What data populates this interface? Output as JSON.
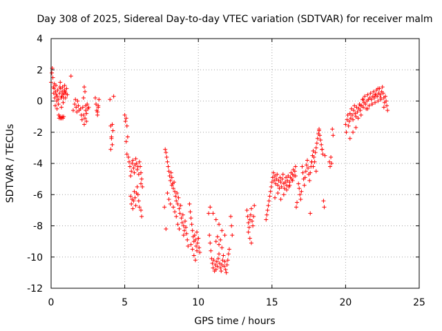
{
  "chart_data": {
    "type": "scatter",
    "title": "Day 308 of 2025, Sidereal Day-to-day VTEC variation (SDTVAR) for receiver malm",
    "xlabel": "GPS time / hours",
    "ylabel": "SDTVAR / TECUs",
    "xlim": [
      0,
      25
    ],
    "ylim": [
      -12,
      4
    ],
    "xticks": [
      0,
      5,
      10,
      15,
      20,
      25
    ],
    "yticks": [
      -12,
      -10,
      -8,
      -6,
      -4,
      -2,
      0,
      2,
      4
    ],
    "xtick_labels": [
      "0",
      "5",
      "10",
      "15",
      "20",
      "25"
    ],
    "ytick_labels": [
      "-12",
      "-10",
      "-8",
      "-6",
      "-4",
      "-2",
      "0",
      "2",
      "4"
    ],
    "grid": true,
    "marker": "+",
    "color": "#ff0000",
    "series": [
      {
        "name": "SDTVAR",
        "x": [
          0.0,
          0.05,
          0.08,
          0.12,
          0.15,
          0.18,
          0.2,
          0.22,
          0.25,
          0.28,
          0.3,
          0.33,
          0.35,
          0.38,
          0.4,
          0.42,
          0.45,
          0.48,
          0.5,
          0.52,
          0.55,
          0.58,
          0.6,
          0.62,
          0.65,
          0.68,
          0.7,
          0.72,
          0.75,
          0.78,
          0.8,
          0.82,
          0.85,
          0.88,
          0.9,
          0.92,
          0.95,
          0.98,
          1.0,
          1.05,
          1.1,
          0.6,
          0.65,
          0.7,
          0.75,
          0.8,
          0.85,
          1.35,
          1.5,
          1.6,
          1.65,
          1.7,
          1.75,
          1.8,
          1.85,
          1.9,
          2.0,
          2.05,
          2.1,
          2.15,
          2.2,
          2.25,
          2.3,
          2.35,
          2.4,
          2.45,
          2.5,
          2.55,
          2.2,
          2.25,
          2.3,
          2.35,
          2.4,
          3.0,
          3.05,
          3.1,
          3.15,
          3.2,
          3.25,
          3.15,
          3.2,
          4.0,
          4.05,
          4.1,
          4.15,
          4.05,
          4.1,
          4.15,
          4.2,
          4.25,
          5.0,
          5.05,
          5.1,
          5.15,
          5.1,
          5.15,
          5.2,
          5.25,
          5.3,
          5.35,
          5.4,
          5.45,
          5.5,
          5.55,
          5.6,
          5.65,
          5.7,
          5.75,
          5.8,
          5.85,
          5.9,
          5.95,
          6.0,
          6.05,
          6.1,
          5.4,
          5.45,
          5.5,
          5.55,
          5.6,
          5.65,
          5.7,
          5.75,
          5.8,
          5.85,
          5.9,
          5.95,
          6.0,
          6.1,
          6.15,
          6.2,
          6.1,
          6.15,
          7.7,
          7.75,
          7.8,
          7.85,
          7.9,
          7.95,
          8.0,
          8.05,
          8.1,
          8.15,
          8.2,
          8.25,
          8.3,
          8.35,
          8.4,
          8.45,
          8.5,
          8.55,
          8.6,
          8.65,
          8.7,
          8.75,
          8.8,
          8.85,
          8.9,
          8.95,
          9.0,
          9.05,
          9.1,
          9.15,
          9.2,
          9.25,
          7.8,
          7.9,
          8.0,
          8.1,
          8.2,
          8.3,
          8.4,
          8.5,
          8.6,
          8.7,
          9.0,
          9.3,
          9.4,
          9.45,
          9.5,
          9.55,
          9.6,
          9.65,
          9.7,
          9.75,
          9.8,
          9.85,
          9.9,
          9.95,
          10.0,
          10.05,
          10.1,
          9.5,
          9.6,
          9.7,
          9.8,
          9.9,
          10.0,
          10.7,
          10.75,
          10.8,
          10.85,
          10.9,
          10.95,
          11.0,
          11.05,
          11.1,
          11.15,
          11.2,
          11.25,
          11.3,
          11.35,
          11.4,
          11.45,
          11.5,
          11.55,
          11.6,
          11.65,
          11.7,
          11.75,
          11.8,
          11.85,
          11.9,
          11.95,
          12.0,
          12.05,
          12.1,
          10.8,
          11.0,
          11.2,
          11.4,
          11.6,
          11.8,
          11.2,
          11.3,
          11.4,
          11.5,
          11.6,
          12.2,
          12.25,
          12.3,
          13.3,
          13.35,
          13.4,
          13.45,
          13.5,
          13.55,
          13.6,
          13.65,
          13.7,
          13.75,
          13.8,
          13.4,
          13.5,
          13.6,
          14.6,
          14.65,
          14.7,
          14.75,
          14.8,
          14.85,
          14.9,
          14.95,
          15.0,
          15.05,
          15.1,
          15.15,
          15.2,
          15.25,
          15.3,
          15.35,
          15.4,
          15.45,
          15.5,
          15.55,
          15.6,
          15.65,
          15.7,
          15.75,
          15.8,
          15.85,
          15.9,
          15.95,
          16.0,
          16.05,
          16.1,
          16.15,
          16.2,
          16.25,
          16.3,
          16.35,
          16.4,
          16.45,
          16.5,
          16.55,
          16.6,
          16.65,
          16.7,
          15.2,
          15.4,
          15.6,
          15.8,
          16.0,
          16.2,
          16.4,
          16.6,
          16.8,
          16.85,
          16.9,
          16.95,
          17.0,
          17.05,
          17.1,
          17.15,
          17.2,
          17.25,
          17.3,
          17.35,
          17.4,
          17.45,
          17.5,
          17.55,
          17.6,
          17.65,
          17.7,
          17.75,
          17.8,
          17.85,
          17.9,
          17.95,
          18.0,
          18.05,
          18.1,
          18.15,
          18.2,
          18.25,
          18.3,
          18.35,
          18.4,
          18.45,
          18.5,
          18.55,
          17.6,
          17.7,
          17.8,
          18.0,
          18.2,
          18.4,
          18.6,
          18.9,
          18.95,
          19.0,
          19.05,
          19.1,
          19.15,
          20.0,
          20.05,
          20.1,
          20.15,
          20.2,
          20.25,
          20.3,
          20.35,
          20.4,
          20.45,
          20.5,
          20.55,
          20.6,
          20.65,
          20.7,
          20.75,
          20.8,
          20.85,
          20.9,
          20.95,
          21.0,
          21.05,
          21.1,
          21.15,
          21.2,
          21.25,
          21.3,
          21.35,
          21.4,
          21.45,
          21.5,
          21.55,
          21.6,
          21.65,
          21.7,
          21.75,
          21.8,
          21.85,
          21.9,
          21.95,
          22.0,
          22.05,
          22.1,
          22.15,
          22.2,
          22.25,
          22.3,
          22.35,
          22.4,
          22.45,
          22.5,
          22.55,
          22.6,
          22.65,
          22.7,
          22.75,
          22.8,
          22.85,
          20.3,
          20.5,
          20.7,
          21.0,
          21.2,
          21.5,
          21.8,
          22.0,
          22.2,
          22.4,
          22.6
        ],
        "y": [
          1.2,
          1.8,
          2.1,
          1.5,
          0.9,
          0.5,
          0.8,
          1.1,
          0.2,
          -0.3,
          0.6,
          1.0,
          0.4,
          0.0,
          -0.5,
          0.3,
          0.7,
          0.1,
          -0.2,
          -0.9,
          -1.1,
          0.5,
          0.9,
          1.2,
          0.8,
          0.2,
          -0.4,
          0.3,
          0.6,
          0.9,
          0.4,
          -0.1,
          0.2,
          0.5,
          0.7,
          1.0,
          0.6,
          0.2,
          0.5,
          0.8,
          0.4,
          -1.0,
          -1.1,
          -1.1,
          -1.0,
          -1.1,
          -1.0,
          1.6,
          -0.6,
          -0.2,
          0.1,
          -0.4,
          -0.7,
          0.0,
          -0.3,
          -0.6,
          -0.5,
          -0.9,
          -1.2,
          -0.4,
          0.2,
          0.9,
          0.6,
          -0.3,
          -0.8,
          -0.2,
          -0.5,
          -0.4,
          -0.9,
          -1.5,
          -1.1,
          -0.6,
          -1.3,
          0.2,
          -0.2,
          -0.6,
          -0.9,
          -0.4,
          0.1,
          -0.7,
          -0.3,
          0.1,
          -1.6,
          -2.3,
          -2.8,
          -3.1,
          -2.4,
          -1.5,
          -1.9,
          0.3,
          -0.9,
          -1.3,
          -1.1,
          -1.6,
          -2.6,
          -3.4,
          -2.3,
          -3.6,
          -3.9,
          -4.2,
          -4.8,
          -4.5,
          -4.0,
          -3.8,
          -4.3,
          -4.6,
          -4.1,
          -3.7,
          -4.0,
          -4.4,
          -4.2,
          -4.7,
          -3.9,
          -4.2,
          -4.6,
          -6.1,
          -6.6,
          -6.3,
          -6.9,
          -6.4,
          -5.8,
          -6.2,
          -6.7,
          -5.9,
          -5.5,
          -6.0,
          -6.4,
          -6.8,
          -5.3,
          -5.0,
          -5.5,
          -7.0,
          -7.4,
          -6.8,
          -3.1,
          -3.3,
          -3.6,
          -3.9,
          -4.2,
          -4.5,
          -4.8,
          -5.1,
          -4.6,
          -4.9,
          -5.3,
          -5.6,
          -5.2,
          -5.8,
          -6.1,
          -6.4,
          -5.9,
          -6.6,
          -6.2,
          -6.9,
          -7.2,
          -6.7,
          -7.5,
          -7.8,
          -7.3,
          -8.0,
          -8.3,
          -7.7,
          -8.1,
          -8.5,
          -8.9,
          -8.2,
          -5.9,
          -6.3,
          -6.6,
          -5.4,
          -6.8,
          -7.1,
          -7.4,
          -7.9,
          -8.2,
          -8.6,
          -9.3,
          -6.6,
          -7.1,
          -7.5,
          -7.9,
          -8.3,
          -8.7,
          -9.0,
          -8.6,
          -8.9,
          -9.3,
          -9.6,
          -9.1,
          -8.8,
          -9.4,
          -9.7,
          -9.2,
          -9.5,
          -9.9,
          -10.2,
          -8.4,
          -8.8,
          -7.2,
          -8.6,
          -9.1,
          -9.6,
          -10.1,
          -10.4,
          -10.7,
          -10.2,
          -10.9,
          -10.5,
          -10.8,
          -10.3,
          -10.6,
          -10.1,
          -9.8,
          -10.4,
          -10.7,
          -10.9,
          -10.5,
          -10.2,
          -9.9,
          -10.6,
          -10.3,
          -10.8,
          -11.0,
          -10.5,
          -10.2,
          -9.8,
          -9.5,
          -6.8,
          -7.2,
          -7.6,
          -7.9,
          -8.3,
          -8.6,
          -9.0,
          -8.7,
          -9.2,
          -8.9,
          -9.4,
          -7.4,
          -8.0,
          -8.6,
          -7.0,
          -7.4,
          -7.8,
          -8.1,
          -7.6,
          -7.3,
          -6.9,
          -7.7,
          -8.0,
          -7.4,
          -6.7,
          -8.4,
          -8.8,
          -9.1,
          -7.6,
          -7.3,
          -7.0,
          -6.7,
          -6.4,
          -6.1,
          -5.8,
          -5.5,
          -5.2,
          -4.9,
          -4.6,
          -5.1,
          -4.8,
          -5.3,
          -5.0,
          -4.7,
          -5.4,
          -5.1,
          -5.6,
          -4.9,
          -5.2,
          -5.5,
          -5.0,
          -4.7,
          -5.3,
          -5.6,
          -5.2,
          -4.9,
          -5.4,
          -5.1,
          -4.8,
          -5.5,
          -5.2,
          -4.9,
          -4.6,
          -5.0,
          -4.7,
          -4.4,
          -4.8,
          -4.5,
          -4.2,
          -6.8,
          -6.5,
          -6.2,
          -5.9,
          -6.3,
          -6.0,
          -5.7,
          -5.4,
          -5.1,
          -4.8,
          -5.3,
          -5.6,
          -6.0,
          -6.3,
          -5.8,
          -4.2,
          -4.6,
          -5.0,
          -5.4,
          -4.9,
          -4.5,
          -4.1,
          -3.8,
          -4.3,
          -4.7,
          -5.1,
          -4.6,
          -4.2,
          -3.9,
          -3.5,
          -3.2,
          -3.6,
          -3.9,
          -3.3,
          -3.0,
          -2.7,
          -2.4,
          -2.1,
          -1.8,
          -2.2,
          -2.5,
          -2.8,
          -3.1,
          -3.4,
          -6.4,
          -6.8,
          -7.2,
          -3.9,
          -4.2,
          -4.5,
          -1.9,
          -3.1,
          -3.5,
          -3.9,
          -4.2,
          -3.6,
          -4.0,
          -1.8,
          -2.2,
          -1.5,
          -2.0,
          -1.2,
          -0.9,
          -1.6,
          -1.3,
          -0.8,
          -1.1,
          -0.5,
          -0.9,
          -1.2,
          -0.6,
          -0.3,
          -0.8,
          -1.0,
          -0.4,
          -0.7,
          -1.1,
          -0.5,
          -0.2,
          -0.6,
          -0.9,
          -0.3,
          0.1,
          -0.4,
          -0.1,
          0.3,
          -0.2,
          -0.5,
          0.0,
          0.4,
          0.1,
          -0.3,
          0.2,
          0.5,
          0.1,
          -0.2,
          0.3,
          0.6,
          0.2,
          -0.1,
          0.4,
          0.7,
          0.3,
          0.0,
          0.5,
          0.8,
          0.4,
          0.1,
          0.6,
          0.9,
          0.5,
          0.2,
          -0.1,
          0.3,
          0.0,
          -0.3,
          -0.6,
          -2.4,
          -2.0,
          -1.7,
          -0.3,
          0.1,
          -0.5,
          -0.2,
          0.4,
          0.8,
          0.2,
          -0.4
        ]
      }
    ]
  }
}
